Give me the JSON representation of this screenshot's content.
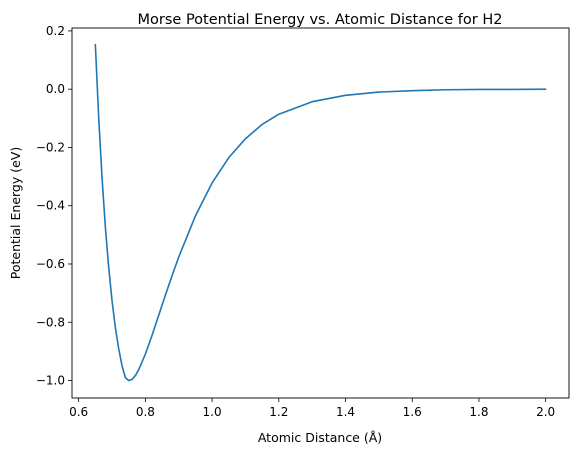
{
  "chart_data": {
    "type": "line",
    "title": "Morse Potential Energy vs. Atomic Distance for H2",
    "xlabel": "Atomic Distance (Å)",
    "ylabel": "Potential Energy (eV)",
    "xlim": [
      0.58,
      2.07
    ],
    "ylim": [
      -1.06,
      0.21
    ],
    "xticks": [
      {
        "value": 0.6,
        "label": "0.6"
      },
      {
        "value": 0.8,
        "label": "0.8"
      },
      {
        "value": 1.0,
        "label": "1.0"
      },
      {
        "value": 1.2,
        "label": "1.2"
      },
      {
        "value": 1.4,
        "label": "1.4"
      },
      {
        "value": 1.6,
        "label": "1.6"
      },
      {
        "value": 1.8,
        "label": "1.8"
      },
      {
        "value": 2.0,
        "label": "2.0"
      }
    ],
    "yticks": [
      {
        "value": -1.0,
        "label": "−1.0"
      },
      {
        "value": -0.8,
        "label": "−0.8"
      },
      {
        "value": -0.6,
        "label": "−0.6"
      },
      {
        "value": -0.4,
        "label": "−0.4"
      },
      {
        "value": -0.2,
        "label": "−0.2"
      },
      {
        "value": 0.0,
        "label": "0.0"
      },
      {
        "value": 0.2,
        "label": "0.2"
      }
    ],
    "grid": false,
    "series": [
      {
        "color": "#1f77b4",
        "x": [
          0.65,
          0.66,
          0.67,
          0.68,
          0.69,
          0.7,
          0.71,
          0.72,
          0.73,
          0.74,
          0.75,
          0.76,
          0.77,
          0.78,
          0.8,
          0.82,
          0.84,
          0.86,
          0.88,
          0.9,
          0.95,
          1.0,
          1.05,
          1.1,
          1.15,
          1.2,
          1.3,
          1.4,
          1.5,
          1.6,
          1.7,
          1.8,
          1.9,
          2.0
        ],
        "y": [
          0.153,
          -0.097,
          -0.303,
          -0.473,
          -0.612,
          -0.726,
          -0.818,
          -0.891,
          -0.949,
          -0.99,
          -1.0,
          -0.996,
          -0.983,
          -0.963,
          -0.909,
          -0.845,
          -0.776,
          -0.707,
          -0.64,
          -0.576,
          -0.435,
          -0.322,
          -0.235,
          -0.17,
          -0.121,
          -0.086,
          -0.043,
          -0.021,
          -0.01,
          -0.005,
          -0.002,
          -0.001,
          -0.001,
          -0.0
        ]
      }
    ]
  }
}
